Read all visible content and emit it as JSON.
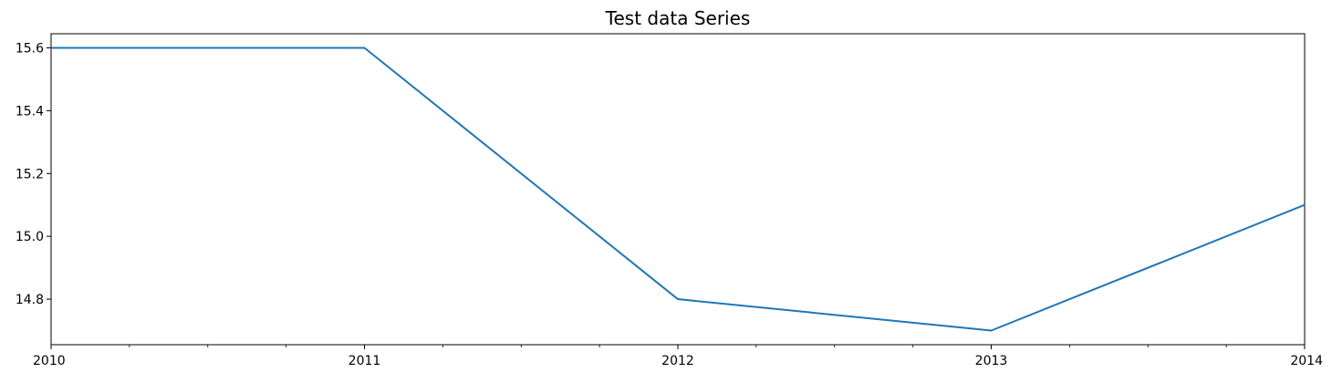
{
  "chart_data": {
    "type": "line",
    "title": "Test data Series",
    "xlabel": "",
    "ylabel": "",
    "x": [
      2010,
      2011,
      2012,
      2013,
      2014
    ],
    "series": [
      {
        "values": [
          15.6,
          15.6,
          14.8,
          14.7,
          15.1
        ],
        "color": "#1f77b4"
      }
    ],
    "xlim": [
      2010,
      2014
    ],
    "ylim": [
      14.655,
      15.645
    ],
    "x_ticks": [
      2010,
      2011,
      2012,
      2013,
      2014
    ],
    "x_tick_labels": [
      "2010",
      "2011",
      "2012",
      "2013",
      "2014"
    ],
    "x_minor_ticks_per_interval": 3,
    "y_ticks": [
      14.8,
      15.0,
      15.2,
      15.4,
      15.6
    ],
    "y_tick_labels": [
      "14.8",
      "15.0",
      "15.2",
      "15.4",
      "15.6"
    ],
    "grid": false,
    "legend": "none"
  }
}
